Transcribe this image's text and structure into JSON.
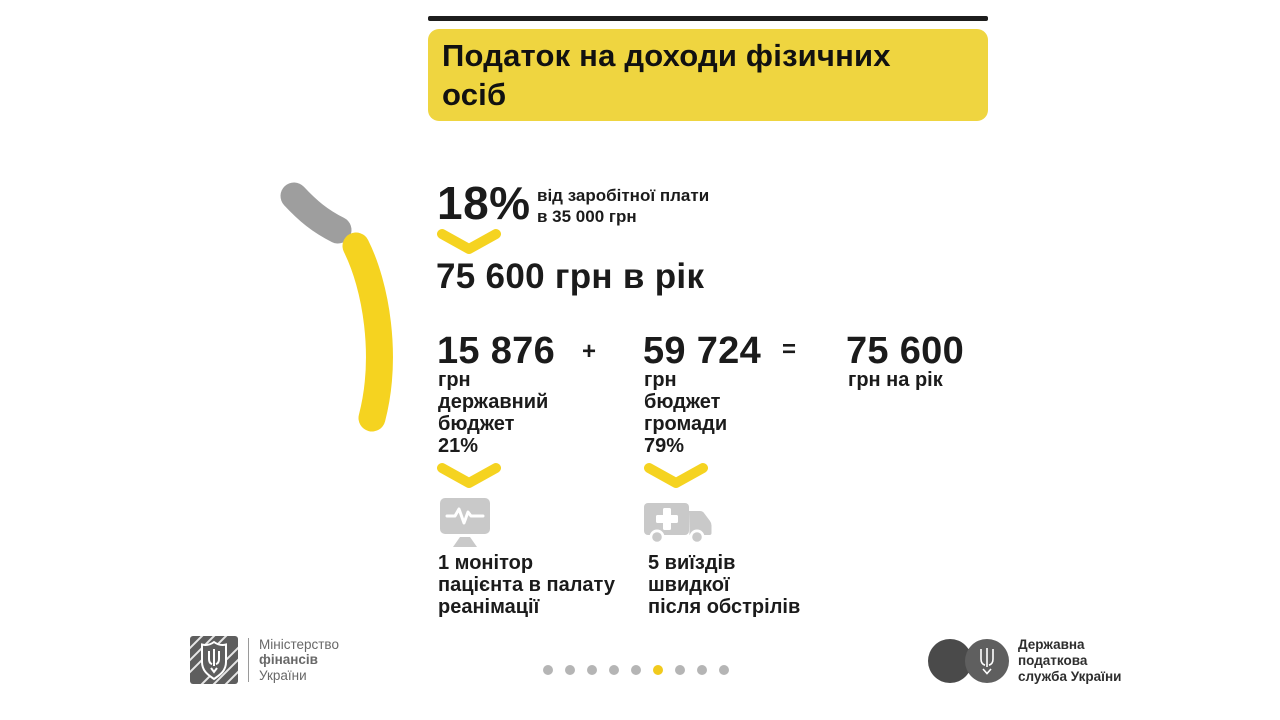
{
  "title": {
    "lines": [
      "Податок на доходи фізичних",
      "осіб"
    ]
  },
  "rate": {
    "percent": "18%",
    "note_lines": [
      "від заробітної плати",
      "в 35 000 грн"
    ]
  },
  "annual_total": "75 600 грн в рік",
  "equation": {
    "left": {
      "amount": "15 876",
      "detail_lines": [
        "грн",
        "державний",
        "бюджет",
        "21%"
      ]
    },
    "operator_plus": "+",
    "middle": {
      "amount": "59 724",
      "detail_lines": [
        "грн",
        "бюджет",
        "громади",
        "79%"
      ]
    },
    "operator_equals": "=",
    "result": {
      "amount": "75 600",
      "detail": "грн на рік"
    }
  },
  "outcomes": [
    {
      "icon": "patient-monitor-icon",
      "lines": [
        "1 монітор",
        "пацієнта в палату",
        "реанімації"
      ]
    },
    {
      "icon": "ambulance-icon",
      "lines": [
        "5 виїздів",
        "швидкої",
        "після обстрілів"
      ]
    }
  ],
  "footer": {
    "ministry": {
      "lines": [
        "Міністерство",
        "фінансів",
        "України"
      ]
    },
    "pagination": {
      "total": 9,
      "active_index": 5
    },
    "tax_service": {
      "lines": [
        "Державна",
        "податкова",
        "служба України"
      ]
    }
  },
  "colors": {
    "banner_yellow": "#EFD540",
    "accent_yellow": "#F5D320",
    "icon_gray": "#C9C9C9",
    "arc_gray": "#9E9E9E",
    "text_black": "#1B1B1B",
    "footer_gray": "#686868",
    "dot_gray": "#B5B5B5"
  }
}
